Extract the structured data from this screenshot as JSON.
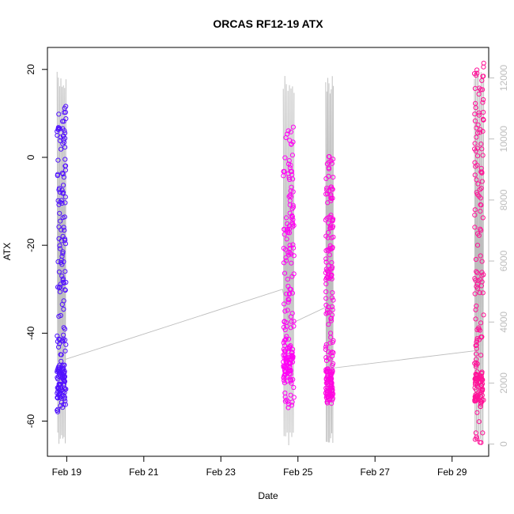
{
  "chart_data": {
    "type": "scatter",
    "title": "ORCAS RF12-19 ATX",
    "xlabel": "Date",
    "ylabel": "ATX",
    "x_ticks": [
      "Feb 19",
      "Feb 21",
      "Feb 23",
      "Feb 25",
      "Feb 27",
      "Feb 29"
    ],
    "y_ticks": [
      "-60",
      "-40",
      "-20",
      "0",
      "20"
    ],
    "y2_ticks": [
      "0",
      "2000",
      "4000",
      "6000",
      "8000",
      "10000",
      "12000"
    ],
    "xlim_days": [
      18.5,
      29.95
    ],
    "ylim": [
      -68,
      25
    ],
    "y2lim": [
      -400,
      13000
    ],
    "colors": {
      "points_start": "#3c14ff",
      "points_mid": "#ff00ff",
      "points_end": "#ff1493",
      "altitude_line": "#bdbdbd"
    },
    "series": [
      {
        "values": [
          {
            "start_day": 18.75,
            "end_day": 18.98,
            "atx_min": -58,
            "atx_max": 12,
            "cluster_at": -51,
            "altitude_max": 12200
          },
          {
            "start_day": 24.62,
            "end_day": 24.9,
            "atx_min": -57,
            "atx_max": 7,
            "cluster_at": -47,
            "altitude_max": 12100
          },
          {
            "start_day": 25.72,
            "end_day": 25.92,
            "atx_min": -56,
            "atx_max": 1,
            "cluster_at": -52,
            "altitude_max": 12100
          },
          {
            "start_day": 29.58,
            "end_day": 29.82,
            "atx_min": -65,
            "atx_max": 22,
            "cluster_at": -53,
            "altitude_max": 12300
          }
        ]
      }
    ],
    "connector_points": [
      {
        "day": 18.95,
        "atx": -46
      },
      {
        "day": 24.6,
        "atx": -30
      },
      {
        "day": 24.78,
        "atx": -38
      },
      {
        "day": 25.75,
        "atx": -34
      },
      {
        "day": 25.85,
        "atx": -48
      },
      {
        "day": 29.6,
        "atx": -44
      }
    ]
  }
}
